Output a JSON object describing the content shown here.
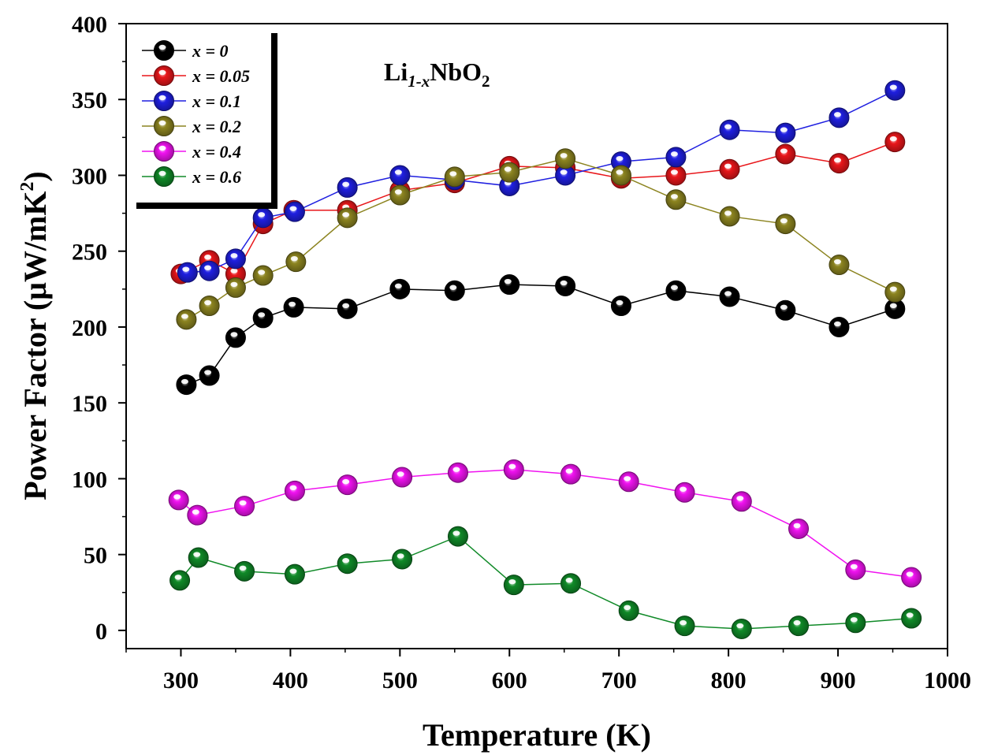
{
  "chart_data": {
    "type": "scatter",
    "annotation": "Li1-xNbO2",
    "annotation_parts": {
      "base": "Li",
      "sub1": "1-x",
      "mid": "NbO",
      "sub2": "2"
    },
    "xlabel": "Temperature (K)",
    "ylabel": "Power Factor (μW/mK²)",
    "ylabel_parts": {
      "main": "Power Factor (μW/mK",
      "sup": "2",
      "end": ")"
    },
    "xlim": [
      250,
      1000
    ],
    "ylim": [
      -12,
      400
    ],
    "x_ticks": [
      300,
      400,
      500,
      600,
      700,
      800,
      900,
      1000
    ],
    "y_ticks": [
      0,
      50,
      100,
      150,
      200,
      250,
      300,
      350,
      400
    ],
    "legend_position": "top-left",
    "series": [
      {
        "name": "x = 0",
        "color": "#000000",
        "x": [
          305,
          326,
          350,
          375,
          403,
          452,
          500,
          550,
          600,
          651,
          702,
          752,
          801,
          852,
          901,
          952
        ],
        "y": [
          162,
          168,
          193,
          206,
          213,
          212,
          225,
          224,
          228,
          227,
          214,
          224,
          220,
          211,
          200,
          212
        ]
      },
      {
        "name": "x = 0.05",
        "color": "#e8161a",
        "x": [
          300,
          326,
          350,
          375,
          403,
          452,
          500,
          550,
          600,
          651,
          702,
          752,
          801,
          852,
          901,
          952
        ],
        "y": [
          235,
          244,
          235,
          268,
          277,
          277,
          290,
          295,
          306,
          305,
          298,
          300,
          304,
          314,
          308,
          322
        ]
      },
      {
        "name": "x = 0.1",
        "color": "#1f1fe0",
        "x": [
          306,
          326,
          350,
          375,
          404,
          452,
          500,
          550,
          600,
          651,
          702,
          752,
          801,
          852,
          901,
          952
        ],
        "y": [
          236,
          237,
          245,
          272,
          276,
          292,
          300,
          297,
          293,
          300,
          309,
          312,
          330,
          328,
          338,
          356
        ]
      },
      {
        "name": "x = 0.2",
        "color": "#8c8420",
        "x": [
          305,
          326,
          350,
          375,
          405,
          452,
          500,
          550,
          600,
          651,
          702,
          752,
          801,
          852,
          901,
          952
        ],
        "y": [
          205,
          214,
          226,
          234,
          243,
          272,
          287,
          299,
          302,
          311,
          300,
          284,
          273,
          268,
          241,
          223
        ]
      },
      {
        "name": "x = 0.4",
        "color": "#f012f0",
        "x": [
          298,
          315,
          358,
          404,
          452,
          502,
          553,
          604,
          656,
          709,
          760,
          812,
          864,
          916,
          967
        ],
        "y": [
          86,
          76,
          82,
          92,
          96,
          101,
          104,
          106,
          103,
          98,
          91,
          85,
          67,
          40,
          35
        ]
      },
      {
        "name": "x = 0.6",
        "color": "#108a28",
        "x": [
          299,
          316,
          358,
          404,
          452,
          502,
          553,
          604,
          656,
          709,
          760,
          812,
          864,
          916,
          967
        ],
        "y": [
          33,
          48,
          39,
          37,
          44,
          47,
          62,
          30,
          31,
          13,
          3,
          1,
          3,
          5,
          8
        ]
      }
    ]
  }
}
